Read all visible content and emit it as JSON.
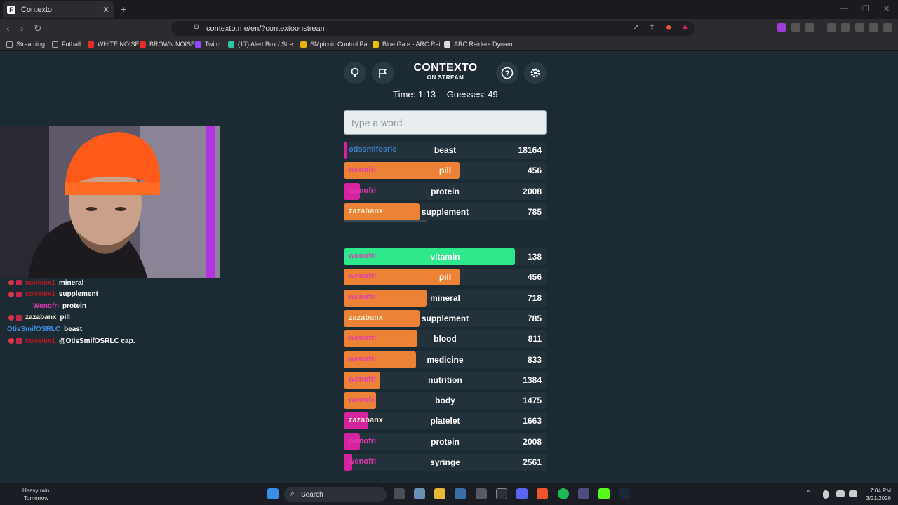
{
  "browser": {
    "tab_title": "Contexto",
    "url": "contexto.me/en/?contextoonstream",
    "bookmarks": [
      "Streaming",
      "Futball",
      "WHITE NOISE",
      "BROWN NOISE",
      "Twitch",
      "(17) Alert Box / Stre...",
      "SMpicnic Control Pa...",
      "Blue Gate - ARC Rai...",
      "ARC Raiders Dynam..."
    ]
  },
  "game": {
    "title": "CONTEXTO",
    "subtitle": "ON STREAM",
    "time_label": "Time: 1:13",
    "guesses_label": "Guesses: 49",
    "input_placeholder": "type a word",
    "recent_guesses": [
      {
        "user": "otissmifosrlc",
        "word": "beast",
        "rank": "18164",
        "fill": 0.008,
        "bar_color": "#d6249e",
        "user_color": "blue"
      },
      {
        "user": "wenofri",
        "word": "pill",
        "rank": "456",
        "fill": 0.57,
        "bar_color": "#ec8236",
        "user_color": "pink"
      },
      {
        "user": "wenofri",
        "word": "protein",
        "rank": "2008",
        "fill": 0.08,
        "bar_color": "#d6249e",
        "user_color": "pink"
      },
      {
        "user": "zazabanx",
        "word": "supplement",
        "rank": "785",
        "fill": 0.375,
        "bar_color": "#ec8236",
        "user_color": "cream"
      }
    ],
    "sorted_guesses": [
      {
        "user": "wenofri",
        "word": "vitamin",
        "rank": "138",
        "fill": 0.845,
        "bar_color": "#2ee88c",
        "user_color": "pink"
      },
      {
        "user": "wenofri",
        "word": "pill",
        "rank": "456",
        "fill": 0.57,
        "bar_color": "#ec8236",
        "user_color": "pink"
      },
      {
        "user": "wenofri",
        "word": "mineral",
        "rank": "718",
        "fill": 0.41,
        "bar_color": "#ec8236",
        "user_color": "pink"
      },
      {
        "user": "zazabanx",
        "word": "supplement",
        "rank": "785",
        "fill": 0.375,
        "bar_color": "#ec8236",
        "user_color": "cream"
      },
      {
        "user": "wenofri",
        "word": "blood",
        "rank": "811",
        "fill": 0.365,
        "bar_color": "#ec8236",
        "user_color": "pink"
      },
      {
        "user": "wenofri",
        "word": "medicine",
        "rank": "833",
        "fill": 0.355,
        "bar_color": "#ec8236",
        "user_color": "pink"
      },
      {
        "user": "wenofri",
        "word": "nutrition",
        "rank": "1384",
        "fill": 0.18,
        "bar_color": "#ec8236",
        "user_color": "pink"
      },
      {
        "user": "wenofri",
        "word": "body",
        "rank": "1475",
        "fill": 0.16,
        "bar_color": "#ec8236",
        "user_color": "pink"
      },
      {
        "user": "zazabanx",
        "word": "platelet",
        "rank": "1663",
        "fill": 0.12,
        "bar_color": "#d6249e",
        "user_color": "cream"
      },
      {
        "user": "wenofri",
        "word": "protein",
        "rank": "2008",
        "fill": 0.08,
        "bar_color": "#d6249e",
        "user_color": "pink"
      },
      {
        "user": "wenofri",
        "word": "syringe",
        "rank": "2561",
        "fill": 0.04,
        "bar_color": "#d6249e",
        "user_color": "pink"
      }
    ]
  },
  "chat": [
    {
      "name": "cookiex1",
      "text": "mineral",
      "name_color": "#c0171f",
      "badges": true
    },
    {
      "name": "cookiex1",
      "text": "supplement",
      "name_color": "#c0171f",
      "badges": true
    },
    {
      "name": "Wenofri",
      "text": "protein",
      "name_color": "#e23bb4",
      "badges": false
    },
    {
      "name": "zazabanx",
      "text": "pill",
      "name_color": "#f6f0d4",
      "badges": true
    },
    {
      "name": "OtisSmifOSRLC",
      "text": "beast",
      "name_color": "#3c8fe0",
      "badges": false
    },
    {
      "name": "cookiex1",
      "text": "@OtisSmifOSRLC cap.",
      "name_color": "#c0171f",
      "badges": true
    }
  ],
  "taskbar": {
    "weather_title": "Heavy rain",
    "weather_sub": "Tomorrow",
    "search_label": "Search",
    "time": "7:04 PM",
    "date": "3/21/2026"
  }
}
